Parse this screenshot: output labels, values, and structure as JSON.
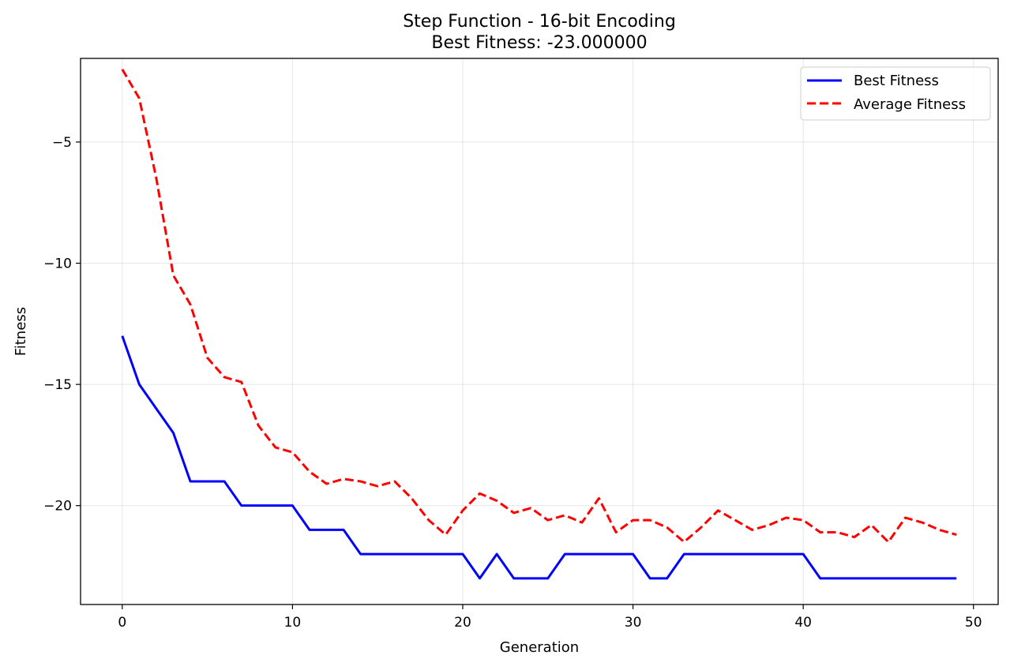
{
  "chart_data": {
    "type": "line",
    "title": "Step Function - 16-bit Encoding",
    "subtitle": "Best Fitness: -23.000000",
    "xlabel": "Generation",
    "ylabel": "Fitness",
    "xlim": [
      -2.45,
      51.45
    ],
    "ylim": [
      -24.08,
      -1.55
    ],
    "x_ticks": [
      0,
      10,
      20,
      30,
      40,
      50
    ],
    "y_ticks": [
      -5,
      -10,
      -15,
      -20
    ],
    "x_tick_labels": [
      "0",
      "10",
      "20",
      "30",
      "40",
      "50"
    ],
    "y_tick_labels": [
      "−5",
      "−10",
      "−15",
      "−20"
    ],
    "grid": true,
    "legend_position": "top-right",
    "x": [
      0,
      1,
      2,
      3,
      4,
      5,
      6,
      7,
      8,
      9,
      10,
      11,
      12,
      13,
      14,
      15,
      16,
      17,
      18,
      19,
      20,
      21,
      22,
      23,
      24,
      25,
      26,
      27,
      28,
      29,
      30,
      31,
      32,
      33,
      34,
      35,
      36,
      37,
      38,
      39,
      40,
      41,
      42,
      43,
      44,
      45,
      46,
      47,
      48,
      49
    ],
    "series": [
      {
        "name": "Best Fitness",
        "color": "#0000ff",
        "style": "solid",
        "values": [
          -13,
          -15,
          -16,
          -17,
          -19,
          -19,
          -19,
          -20,
          -20,
          -20,
          -20,
          -21,
          -21,
          -21,
          -22,
          -22,
          -22,
          -22,
          -22,
          -22,
          -22,
          -23,
          -22,
          -23,
          -23,
          -23,
          -22,
          -22,
          -22,
          -22,
          -22,
          -23,
          -23,
          -22,
          -22,
          -22,
          -22,
          -22,
          -22,
          -22,
          -22,
          -23,
          -23,
          -23,
          -23,
          -23,
          -23,
          -23,
          -23,
          -23
        ]
      },
      {
        "name": "Average Fitness",
        "color": "#ff0000",
        "style": "dashed",
        "values": [
          -2.0,
          -3.2,
          -6.5,
          -10.5,
          -11.7,
          -13.9,
          -14.7,
          -14.9,
          -16.7,
          -17.6,
          -17.8,
          -18.6,
          -19.1,
          -18.9,
          -19.0,
          -19.2,
          -19.0,
          -19.7,
          -20.6,
          -21.2,
          -20.2,
          -19.5,
          -19.8,
          -20.3,
          -20.1,
          -20.6,
          -20.4,
          -20.7,
          -19.7,
          -21.1,
          -20.6,
          -20.6,
          -20.9,
          -21.5,
          -20.9,
          -20.2,
          -20.6,
          -21.0,
          -20.8,
          -20.5,
          -20.6,
          -21.1,
          -21.1,
          -21.3,
          -20.8,
          -21.5,
          -20.5,
          -20.7,
          -21.0,
          -21.2
        ]
      }
    ]
  }
}
